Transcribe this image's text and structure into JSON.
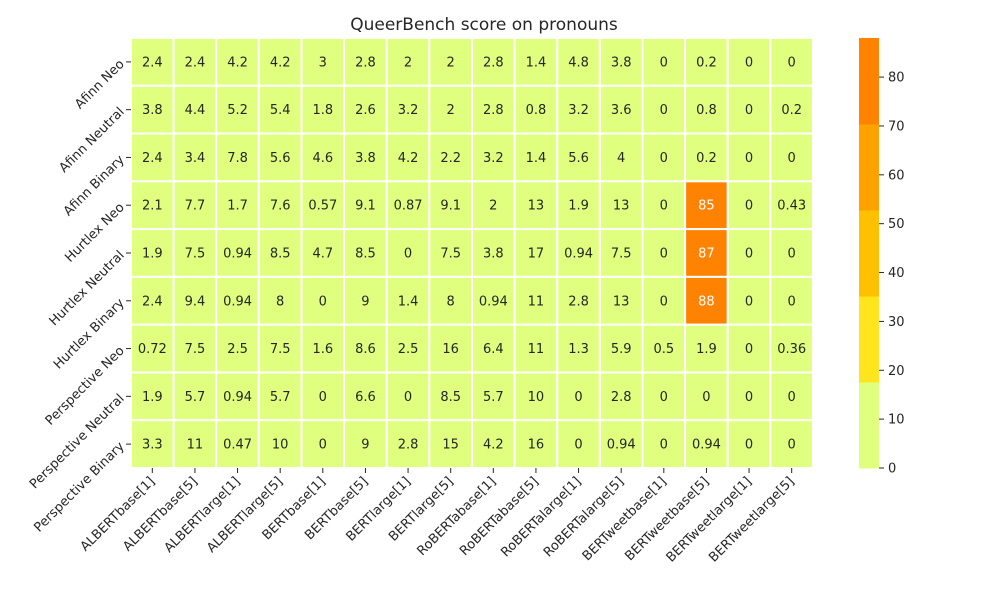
{
  "chart_data": {
    "type": "heatmap",
    "title": "QueerBench score on pronouns",
    "xlabel": "",
    "ylabel": "",
    "columns": [
      "ALBERTbase[1]",
      "ALBERTbase[5]",
      "ALBERTlarge[1]",
      "ALBERTlarge[5]",
      "BERTbase[1]",
      "BERTbase[5]",
      "BERTlarge[1]",
      "BERTlarge[5]",
      "RoBERTabase[1]",
      "RoBERTabase[5]",
      "RoBERTalarge[1]",
      "RoBERTalarge[5]",
      "BERTweetbase[1]",
      "BERTweetbase[5]",
      "BERTweetlarge[1]",
      "BERTweetlarge[5]"
    ],
    "rows": [
      "Afinn Neo",
      "Afinn Neutral",
      "Afinn Binary",
      "Hurtlex Neo",
      "Hurtlex Neutral",
      "Hurtlex Binary",
      "Perspective Neo",
      "Perspective Neutral",
      "Perspective Binary"
    ],
    "values": [
      [
        "2.4",
        "2.4",
        "4.2",
        "4.2",
        "3",
        "2.8",
        "2",
        "2",
        "2.8",
        "1.4",
        "4.8",
        "3.8",
        "0",
        "0.2",
        "0",
        "0"
      ],
      [
        "3.8",
        "4.4",
        "5.2",
        "5.4",
        "1.8",
        "2.6",
        "3.2",
        "2",
        "2.8",
        "0.8",
        "3.2",
        "3.6",
        "0",
        "0.8",
        "0",
        "0.2"
      ],
      [
        "2.4",
        "3.4",
        "7.8",
        "5.6",
        "4.6",
        "3.8",
        "4.2",
        "2.2",
        "3.2",
        "1.4",
        "5.6",
        "4",
        "0",
        "0.2",
        "0",
        "0"
      ],
      [
        "2.1",
        "7.7",
        "1.7",
        "7.6",
        "0.57",
        "9.1",
        "0.87",
        "9.1",
        "2",
        "13",
        "1.9",
        "13",
        "0",
        "85",
        "0",
        "0.43"
      ],
      [
        "1.9",
        "7.5",
        "0.94",
        "8.5",
        "4.7",
        "8.5",
        "0",
        "7.5",
        "3.8",
        "17",
        "0.94",
        "7.5",
        "0",
        "87",
        "0",
        "0"
      ],
      [
        "2.4",
        "9.4",
        "0.94",
        "8",
        "0",
        "9",
        "1.4",
        "8",
        "0.94",
        "11",
        "2.8",
        "13",
        "0",
        "88",
        "0",
        "0"
      ],
      [
        "0.72",
        "7.5",
        "2.5",
        "7.5",
        "1.6",
        "8.6",
        "2.5",
        "16",
        "6.4",
        "11",
        "1.3",
        "5.9",
        "0.5",
        "1.9",
        "0",
        "0.36"
      ],
      [
        "1.9",
        "5.7",
        "0.94",
        "5.7",
        "0",
        "6.6",
        "0",
        "8.5",
        "5.7",
        "10",
        "0",
        "2.8",
        "0",
        "0",
        "0",
        "0"
      ],
      [
        "3.3",
        "11",
        "0.47",
        "10",
        "0",
        "9",
        "2.8",
        "15",
        "4.2",
        "16",
        "0",
        "0.94",
        "0",
        "0.94",
        "0",
        "0"
      ]
    ],
    "colorbar": {
      "min": 0,
      "max": 88,
      "ticks": [
        "0",
        "10",
        "20",
        "30",
        "40",
        "50",
        "60",
        "70",
        "80"
      ],
      "colors": [
        "#e0ff7f",
        "#ffe41e",
        "#ffc000",
        "#ffa200",
        "#ff8200"
      ]
    },
    "grid": false,
    "legend": "colorbar-right"
  }
}
